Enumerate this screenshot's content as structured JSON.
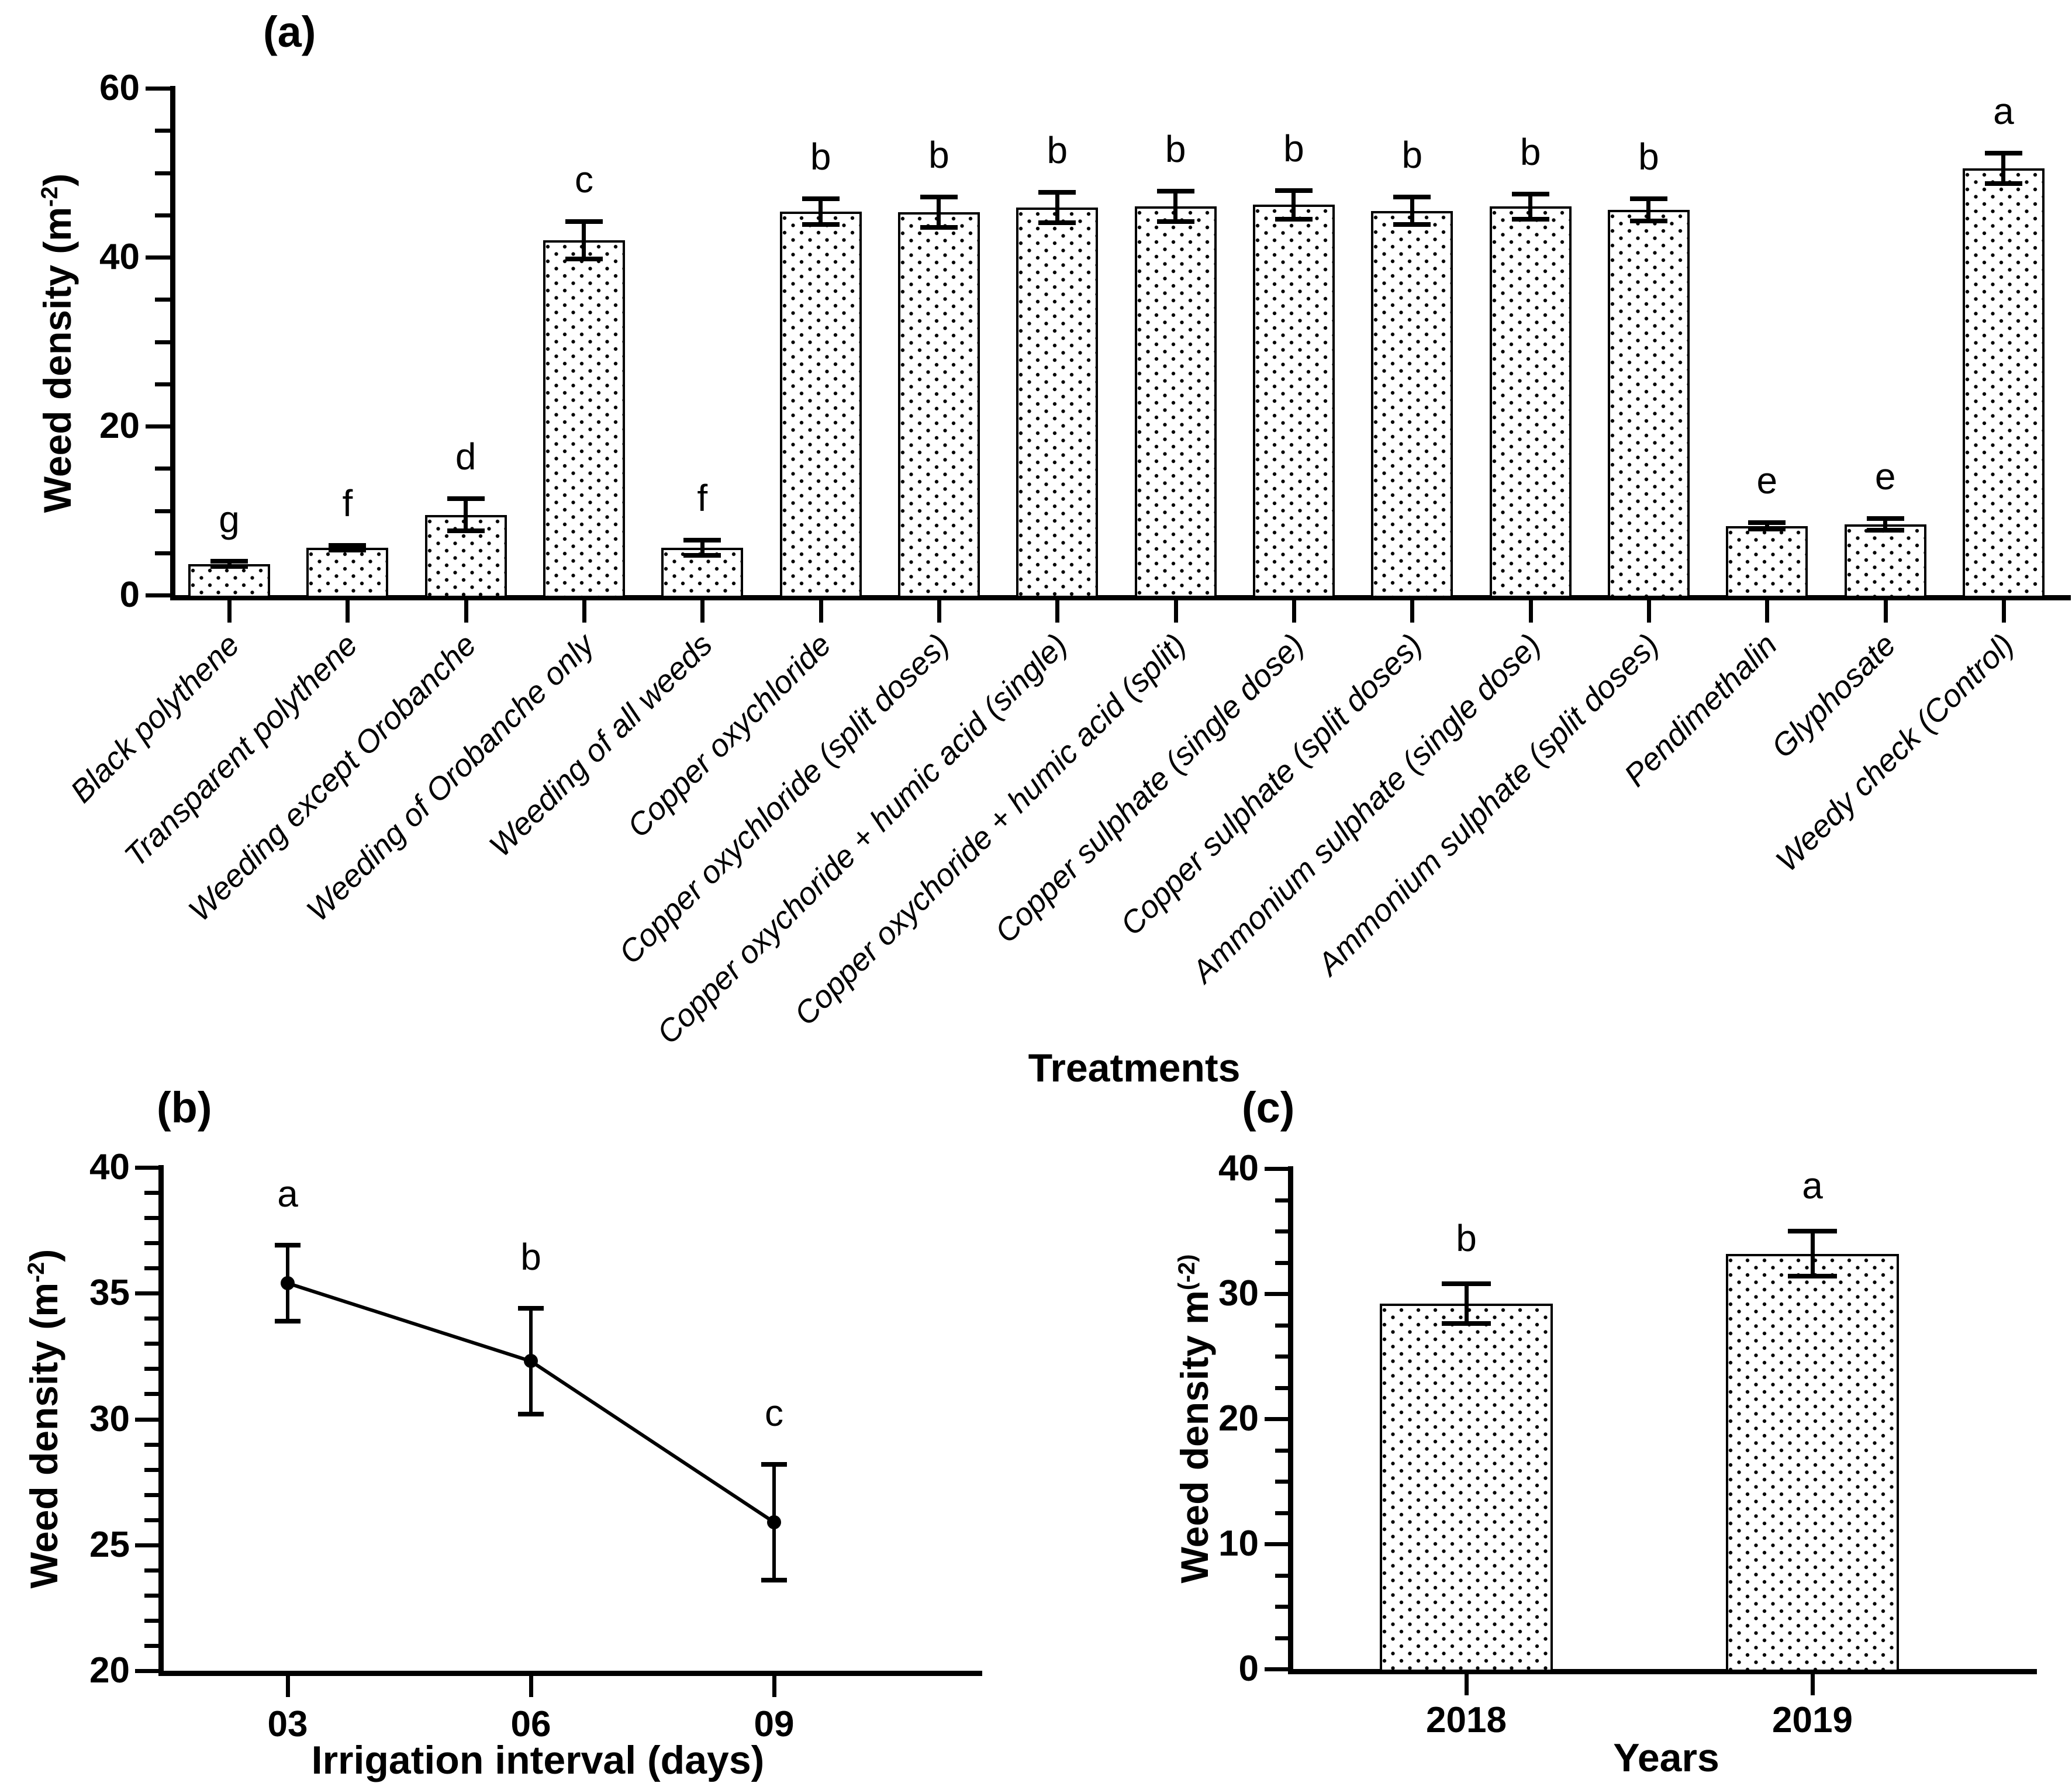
{
  "chart_data": [
    {
      "panel": "a",
      "type": "bar",
      "title": "(a)",
      "xlabel": "Treatments",
      "ylabel": {
        "pre": "Weed density (m",
        "sup": "-2",
        "post": ")"
      },
      "ylim": [
        0,
        60
      ],
      "yticks": [
        0,
        20,
        40,
        60
      ],
      "minor_tick_step": 5,
      "grid": false,
      "legend": "none",
      "bar_fill": "white with black stipple dots",
      "categories": [
        "Black polythene",
        "Transparent polythene",
        "Weeding except Orobanche",
        "Weeding of Orobanche only",
        "Weeding of all weeds",
        "Copper oxychloride",
        "Copper oxychloride (split doses)",
        "Copper oxychoride + humic acid (single)",
        "Copper oxychoride + humic acid (split)",
        "Copper sulphate (single dose)",
        "Copper sulphate (split doses)",
        "Ammonium sulphate (single dose)",
        "Ammonium sulphate (split doses)",
        "Pendimethalin",
        "Glyphosate",
        "Weedy check (Control)"
      ],
      "values": [
        3.7,
        5.6,
        9.5,
        42.0,
        5.6,
        45.4,
        45.3,
        45.9,
        46.0,
        46.2,
        45.5,
        46.0,
        45.6,
        8.2,
        8.4,
        50.5
      ],
      "errors": [
        0.3,
        0.3,
        1.9,
        2.2,
        0.9,
        1.5,
        1.8,
        1.8,
        1.8,
        1.7,
        1.6,
        1.5,
        1.3,
        0.35,
        0.7,
        1.8
      ],
      "letters": [
        "g",
        "f",
        "d",
        "c",
        "f",
        "b",
        "b",
        "b",
        "b",
        "b",
        "b",
        "b",
        "b",
        "e",
        "e",
        "a"
      ]
    },
    {
      "panel": "b",
      "type": "line",
      "title": "(b)",
      "xlabel": "Irrigation interval (days)",
      "ylabel": {
        "pre": "Weed density (m",
        "sup": "-2",
        "post": ")"
      },
      "ylim": [
        20,
        40
      ],
      "yticks": [
        20,
        25,
        30,
        35,
        40
      ],
      "minor_tick_step": 1,
      "grid": false,
      "legend": "none",
      "marker": "filled circle",
      "categories": [
        "03",
        "06",
        "09"
      ],
      "values": [
        35.4,
        32.3,
        25.9
      ],
      "errors": [
        1.5,
        2.1,
        2.3
      ],
      "letters": [
        "a",
        "b",
        "c"
      ]
    },
    {
      "panel": "c",
      "type": "bar",
      "title": "(c)",
      "xlabel": "Years",
      "ylabel": {
        "pre": "Weed density m",
        "sup": "(-2)",
        "post": ""
      },
      "ylim": [
        0,
        40
      ],
      "yticks": [
        0,
        10,
        20,
        30,
        40
      ],
      "minor_tick_step": 2.5,
      "grid": false,
      "legend": "none",
      "bar_fill": "white with black stipple dots",
      "categories": [
        "2018",
        "2019"
      ],
      "values": [
        29.2,
        33.2
      ],
      "errors": [
        1.6,
        1.8
      ],
      "letters": [
        "b",
        "a"
      ]
    }
  ],
  "colors": {
    "ink": "#000000",
    "background": "#ffffff"
  }
}
